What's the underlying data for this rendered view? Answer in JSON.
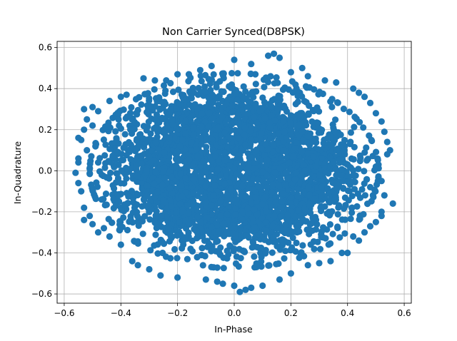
{
  "chart_data": {
    "type": "scatter",
    "title": "Non Carrier Synced(D8PSK)",
    "xlabel": "In-Phase",
    "ylabel": "In-Quadrature",
    "xlim": [
      -0.625,
      0.625
    ],
    "ylim": [
      -0.645,
      0.63
    ],
    "xticks": [
      -0.6,
      -0.4,
      -0.2,
      0.0,
      0.2,
      0.4,
      0.6
    ],
    "xtick_labels": [
      "−0.6",
      "−0.4",
      "−0.2",
      "0.0",
      "0.2",
      "0.4",
      "0.6"
    ],
    "yticks": [
      -0.6,
      -0.4,
      -0.2,
      0.0,
      0.2,
      0.4,
      0.6
    ],
    "ytick_labels": [
      "−0.6",
      "−0.4",
      "−0.2",
      "0.0",
      "0.2",
      "0.4",
      "0.6"
    ],
    "grid": true,
    "color": "#1f77b4",
    "points": [
      [
        -0.56,
        -0.01
      ],
      [
        0.56,
        -0.16
      ],
      [
        0.53,
        0.19
      ],
      [
        0.55,
        0.1
      ],
      [
        0.54,
        0.08
      ],
      [
        -0.55,
        0.16
      ],
      [
        -0.54,
        0.15
      ],
      [
        -0.55,
        0.06
      ],
      [
        -0.55,
        0.04
      ],
      [
        -0.53,
        0.3
      ],
      [
        -0.52,
        0.25
      ],
      [
        -0.5,
        0.31
      ],
      [
        -0.48,
        0.29
      ],
      [
        -0.44,
        0.34
      ],
      [
        -0.4,
        0.36
      ],
      [
        -0.38,
        0.37
      ],
      [
        -0.32,
        0.45
      ],
      [
        -0.28,
        0.44
      ],
      [
        -0.24,
        0.44
      ],
      [
        -0.2,
        0.47
      ],
      [
        -0.12,
        0.49
      ],
      [
        -0.08,
        0.51
      ],
      [
        0.0,
        0.54
      ],
      [
        0.06,
        0.52
      ],
      [
        0.12,
        0.56
      ],
      [
        0.14,
        0.57
      ],
      [
        0.16,
        0.55
      ],
      [
        0.2,
        0.48
      ],
      [
        0.26,
        0.46
      ],
      [
        0.32,
        0.44
      ],
      [
        0.36,
        0.43
      ],
      [
        0.42,
        0.4
      ],
      [
        0.46,
        0.36
      ],
      [
        0.48,
        0.33
      ],
      [
        0.5,
        0.28
      ],
      [
        0.52,
        0.24
      ],
      [
        0.54,
        0.14
      ],
      [
        0.52,
        -0.05
      ],
      [
        0.53,
        -0.12
      ],
      [
        0.52,
        -0.2
      ],
      [
        0.52,
        -0.22
      ],
      [
        0.5,
        -0.25
      ],
      [
        0.48,
        -0.27
      ],
      [
        0.46,
        -0.3
      ],
      [
        0.42,
        -0.32
      ],
      [
        0.4,
        -0.4
      ],
      [
        0.38,
        -0.4
      ],
      [
        0.34,
        -0.44
      ],
      [
        0.3,
        -0.45
      ],
      [
        0.26,
        -0.46
      ],
      [
        0.2,
        -0.5
      ],
      [
        0.16,
        -0.53
      ],
      [
        0.1,
        -0.56
      ],
      [
        0.04,
        -0.58
      ],
      [
        0.02,
        -0.59
      ],
      [
        0.0,
        -0.56
      ],
      [
        -0.04,
        -0.55
      ],
      [
        -0.1,
        -0.53
      ],
      [
        -0.2,
        -0.52
      ],
      [
        -0.26,
        -0.51
      ],
      [
        -0.3,
        -0.48
      ],
      [
        -0.36,
        -0.44
      ],
      [
        -0.4,
        -0.36
      ],
      [
        -0.44,
        -0.32
      ],
      [
        -0.48,
        -0.3
      ],
      [
        -0.5,
        -0.26
      ],
      [
        -0.51,
        -0.22
      ],
      [
        -0.53,
        -0.24
      ],
      [
        -0.53,
        -0.18
      ],
      [
        -0.54,
        -0.1
      ],
      [
        -0.55,
        -0.06
      ],
      [
        -0.52,
        0.1
      ],
      [
        -0.53,
        0.2
      ],
      [
        -0.5,
        0.22
      ],
      [
        0.5,
        0.02
      ],
      [
        0.48,
        -0.08
      ],
      [
        -0.48,
        0.04
      ],
      [
        0.24,
        0.5
      ],
      [
        -0.16,
        0.47
      ],
      [
        0.44,
        0.38
      ],
      [
        -0.46,
        -0.28
      ],
      [
        0.44,
        -0.34
      ],
      [
        -0.34,
        -0.46
      ],
      [
        0.06,
        -0.57
      ],
      [
        -0.06,
        -0.54
      ]
    ]
  }
}
